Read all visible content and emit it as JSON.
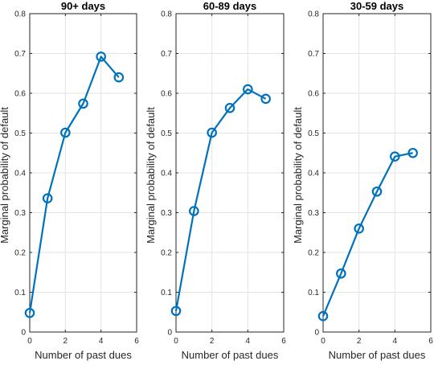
{
  "chart_data": [
    {
      "type": "line",
      "title": "90+ days",
      "xlabel": "Number of past dues",
      "ylabel": "Marginal probability of default",
      "x": [
        0,
        1,
        2,
        3,
        4,
        5
      ],
      "y": [
        0.048,
        0.336,
        0.501,
        0.574,
        0.692,
        0.64
      ],
      "xlim": [
        0,
        6
      ],
      "ylim": [
        0,
        0.8
      ],
      "xticks": [
        0,
        2,
        4,
        6
      ],
      "yticks": [
        0,
        0.1,
        0.2,
        0.3,
        0.4,
        0.5,
        0.6,
        0.7,
        0.8
      ],
      "grid": true,
      "color": "#0072BD",
      "marker": "circle"
    },
    {
      "type": "line",
      "title": "60-89 days",
      "xlabel": "Number of past dues",
      "ylabel": "Marginal probability of default",
      "x": [
        0,
        1,
        2,
        3,
        4,
        5
      ],
      "y": [
        0.053,
        0.304,
        0.501,
        0.563,
        0.61,
        0.586
      ],
      "xlim": [
        0,
        6
      ],
      "ylim": [
        0,
        0.8
      ],
      "xticks": [
        0,
        2,
        4,
        6
      ],
      "yticks": [
        0,
        0.1,
        0.2,
        0.3,
        0.4,
        0.5,
        0.6,
        0.7,
        0.8
      ],
      "grid": true,
      "color": "#0072BD",
      "marker": "circle"
    },
    {
      "type": "line",
      "title": "30-59 days",
      "xlabel": "Number of past dues",
      "ylabel": "Marginal probability of default",
      "x": [
        0,
        1,
        2,
        3,
        4,
        5
      ],
      "y": [
        0.04,
        0.147,
        0.26,
        0.353,
        0.441,
        0.45
      ],
      "xlim": [
        0,
        6
      ],
      "ylim": [
        0,
        0.8
      ],
      "xticks": [
        0,
        2,
        4,
        6
      ],
      "yticks": [
        0,
        0.1,
        0.2,
        0.3,
        0.4,
        0.5,
        0.6,
        0.7,
        0.8
      ],
      "grid": true,
      "color": "#0072BD",
      "marker": "circle"
    }
  ]
}
